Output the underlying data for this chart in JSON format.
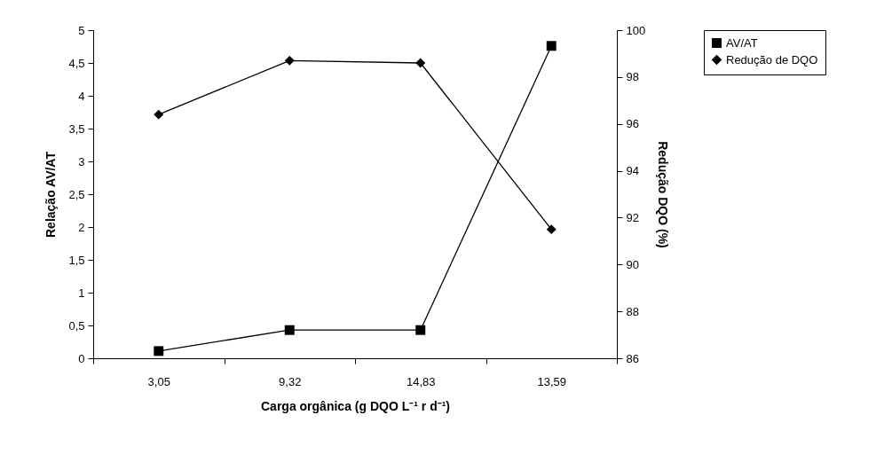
{
  "chart_data": {
    "type": "line",
    "xlabel": "Carga orgânica (g DQO L⁻¹ r d⁻¹)",
    "ylabel": "Relação AV/AT",
    "y2label": "Redução DQO (%)",
    "categories": [
      "3,05",
      "9,32",
      "14,83",
      "13,59"
    ],
    "series": [
      {
        "name": "AV/AT",
        "color": "#000000",
        "marker": "square",
        "values": [
          0.11,
          0.43,
          0.43,
          4.76
        ]
      },
      {
        "name": "Redução de DQO",
        "color": "#000000",
        "marker": "diamond",
        "axis": "y2",
        "values": [
          96.4,
          98.7,
          98.6,
          91.5
        ]
      }
    ],
    "ylim": [
      0,
      5
    ],
    "yticks": [
      0,
      {
        "value": 0.5,
        "label": "0,5"
      },
      1,
      {
        "value": 1.5,
        "label": "1,5"
      },
      2,
      {
        "value": 2.5,
        "label": "2,5"
      },
      3,
      {
        "value": 3.5,
        "label": "3,5"
      },
      4,
      {
        "value": 4.5,
        "label": "4,5"
      },
      5
    ],
    "y2lim": [
      86,
      100
    ],
    "y2ticks": [
      86,
      88,
      90,
      92,
      94,
      96,
      98,
      100
    ],
    "grid": false,
    "legend": "right",
    "line_style": "solid"
  }
}
